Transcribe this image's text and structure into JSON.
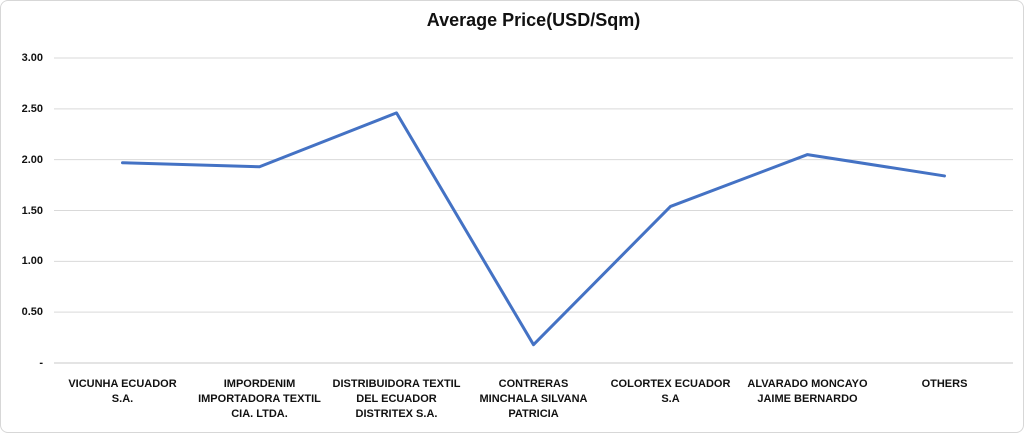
{
  "chart_data": {
    "type": "line",
    "title": "Average Price(USD/Sqm)",
    "categories": [
      "VICUNHA ECUADOR S.A.",
      "IMPORDENIM IMPORTADORA TEXTIL CIA. LTDA.",
      "DISTRIBUIDORA TEXTIL DEL ECUADOR DISTRITEX S.A.",
      "CONTRERAS MINCHALA SILVANA PATRICIA",
      "COLORTEX ECUADOR S.A",
      "ALVARADO MONCAYO JAIME BERNARDO",
      "OTHERS"
    ],
    "categories_display": [
      "VICUNHA ECUADOR\nS.A.",
      "IMPORDENIM\nIMPORTADORA TEXTIL\nCIA. LTDA.",
      "DISTRIBUIDORA TEXTIL\nDEL ECUADOR\nDISTRITEX S.A.",
      "CONTRERAS\nMINCHALA SILVANA\nPATRICIA",
      "COLORTEX ECUADOR\nS.A",
      "ALVARADO MONCAYO\nJAIME BERNARDO",
      "OTHERS"
    ],
    "values": [
      1.97,
      1.93,
      2.46,
      0.18,
      1.54,
      2.05,
      1.84
    ],
    "xlabel": "",
    "ylabel": "",
    "ylim": [
      0,
      3
    ],
    "y_ticks": [
      3.0,
      2.5,
      2.0,
      1.5,
      1.0,
      0.5,
      0
    ],
    "y_tick_labels": [
      "3.00",
      "2.50",
      "2.00",
      "1.50",
      "1.00",
      "0.50",
      "-"
    ],
    "grid": true,
    "legend": false,
    "line_color": "#4472C4",
    "gridline_color": "#D9D9D9",
    "axis_color": "#C9C9C9",
    "title_color": "#111111"
  }
}
